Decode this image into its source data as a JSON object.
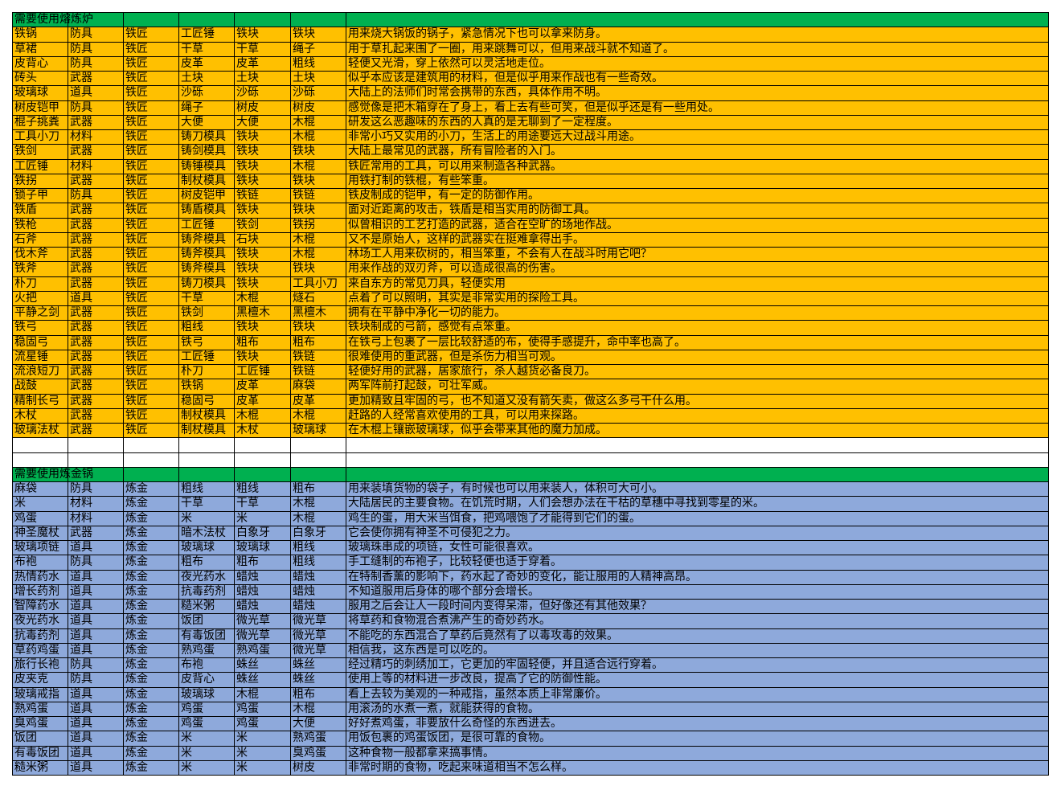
{
  "sections": [
    {
      "title": "需要使用熔炼炉",
      "rows": [
        [
          "铁锅",
          "防具",
          "铁匠",
          "工匠锤",
          "铁块",
          "铁块",
          "用来烧大锅饭的锅子，紧急情况下也可以拿来防身。"
        ],
        [
          "草裙",
          "防具",
          "铁匠",
          "干草",
          "干草",
          "绳子",
          "用于草扎起来围了一圈，用来跳舞可以，但用来战斗就不知道了。"
        ],
        [
          "皮背心",
          "防具",
          "铁匠",
          "皮革",
          "皮革",
          "粗线",
          "轻便又光滑，穿上依然可以灵活地走位。"
        ],
        [
          "砖头",
          "武器",
          "铁匠",
          "土块",
          "土块",
          "土块",
          "似乎本应该是建筑用的材料，但是似乎用来作战也有一些奇效。"
        ],
        [
          "玻璃球",
          "道具",
          "铁匠",
          "沙砾",
          "沙砾",
          "沙砾",
          "大陆上的法师们时常会携带的东西，具体作用不明。"
        ],
        [
          "树皮铠甲",
          "防具",
          "铁匠",
          "绳子",
          "树皮",
          "树皮",
          "感觉像是把木箱穿在了身上，看上去有些可笑，但是似乎还是有一些用处。"
        ],
        [
          "棍子挑粪",
          "武器",
          "铁匠",
          "大便",
          "大便",
          "木棍",
          "研发这么恶趣味的东西的人真的是无聊到了一定程度。"
        ],
        [
          "工具小刀",
          "材料",
          "铁匠",
          "铸刀模具",
          "铁块",
          "木棍",
          "非常小巧又实用的小刀，生活上的用途要远大过战斗用途。"
        ],
        [
          "铁剑",
          "武器",
          "铁匠",
          "铸剑模具",
          "铁块",
          "铁块",
          "大陆上最常见的武器，所有冒险者的入门。"
        ],
        [
          "工匠锤",
          "材料",
          "铁匠",
          "铸锤模具",
          "铁块",
          "木棍",
          "铁匠常用的工具，可以用来制造各种武器。"
        ],
        [
          "铁拐",
          "武器",
          "铁匠",
          "制杖模具",
          "铁块",
          "铁块",
          "用铁打制的铁棍，有些笨重。"
        ],
        [
          "锁子甲",
          "防具",
          "铁匠",
          "树皮铠甲",
          "铁链",
          "铁链",
          "铁皮制成的铠甲，有一定的防御作用。"
        ],
        [
          "铁盾",
          "武器",
          "铁匠",
          "铸盾模具",
          "铁块",
          "铁块",
          "面对近距离的攻击，铁盾是相当实用的防御工具。"
        ],
        [
          "铁枪",
          "武器",
          "铁匠",
          "工匠锤",
          "铁剑",
          "铁拐",
          "似曾相识的工艺打造的武器，适合在空旷的场地作战。"
        ],
        [
          "石斧",
          "武器",
          "铁匠",
          "铸斧模具",
          "石块",
          "木棍",
          "又不是原始人，这样的武器实在挺难拿得出手。"
        ],
        [
          "伐木斧",
          "武器",
          "铁匠",
          "铸斧模具",
          "铁块",
          "木棍",
          "林场工人用来砍树的，相当笨重，不会有人在战斗时用它吧？"
        ],
        [
          "铁斧",
          "武器",
          "铁匠",
          "铸斧模具",
          "铁块",
          "铁块",
          "用来作战的双刃斧，可以造成很高的伤害。"
        ],
        [
          "朴刀",
          "武器",
          "铁匠",
          "铸刀模具",
          "铁块",
          "工具小刀",
          "来自东方的常见刀具，轻便实用"
        ],
        [
          "火把",
          "道具",
          "铁匠",
          "干草",
          "木棍",
          "燧石",
          "点着了可以照明，其实是非常实用的探险工具。"
        ],
        [
          "平静之剑",
          "武器",
          "铁匠",
          "铁剑",
          "黑檀木",
          "黑檀木",
          "拥有在平静中净化一切的能力。"
        ],
        [
          "铁弓",
          "武器",
          "铁匠",
          "粗线",
          "铁块",
          "铁块",
          "铁块制成的弓箭，感觉有点笨重。"
        ],
        [
          "稳固弓",
          "武器",
          "铁匠",
          "铁弓",
          "粗布",
          "粗布",
          "在铁弓上包裹了一层比较舒适的布，使得手感提升，命中率也高了。"
        ],
        [
          "流星锤",
          "武器",
          "铁匠",
          "工匠锤",
          "铁块",
          "铁链",
          "很难使用的重武器，但是杀伤力相当可观。"
        ],
        [
          "流浪短刀",
          "武器",
          "铁匠",
          "朴刀",
          "工匠锤",
          "铁链",
          "轻便好用的武器，居家旅行，杀人越货必备良刀。"
        ],
        [
          "战鼓",
          "武器",
          "铁匠",
          "铁锅",
          "皮革",
          "麻袋",
          "两军阵前打起鼓，可壮军威。"
        ],
        [
          "精制长弓",
          "武器",
          "铁匠",
          "稳固弓",
          "皮革",
          "皮革",
          "更加精致且牢固的弓，也不知道又没有箭矢卖，做这么多弓干什么用。"
        ],
        [
          "木杖",
          "武器",
          "铁匠",
          "制杖模具",
          "木棍",
          "木棍",
          "赶路的人经常喜欢使用的工具，可以用来探路。"
        ],
        [
          "玻璃法杖",
          "武器",
          "铁匠",
          "制杖模具",
          "木杖",
          "玻璃球",
          "在木棍上镶嵌玻璃球，似乎会带来其他的魔力加成。"
        ]
      ]
    },
    {
      "title": "需要使用炼金锅",
      "rows": [
        [
          "麻袋",
          "防具",
          "炼金",
          "粗线",
          "粗线",
          "粗布",
          "用来装填货物的袋子，有时候也可以用来装人，体积可大可小。"
        ],
        [
          "米",
          "材料",
          "炼金",
          "干草",
          "干草",
          "木棍",
          "大陆居民的主要食物。在饥荒时期，人们会想办法在干枯的草穗中寻找到零星的米。"
        ],
        [
          "鸡蛋",
          "材料",
          "炼金",
          "米",
          "米",
          "木棍",
          "鸡生的蛋，用大米当饵食，把鸡喂饱了才能得到它们的蛋。"
        ],
        [
          "神圣魔杖",
          "武器",
          "炼金",
          "暗木法杖",
          "白象牙",
          "白象牙",
          "它会使你拥有神圣不可侵犯之力。"
        ],
        [
          "玻璃项链",
          "道具",
          "炼金",
          "玻璃球",
          "玻璃球",
          "粗线",
          "玻璃珠串成的项链，女性可能很喜欢。"
        ],
        [
          "布袍",
          "防具",
          "炼金",
          "粗布",
          "粗布",
          "粗线",
          "手工缝制的布袍子，比较轻便也适于穿着。"
        ],
        [
          "热情药水",
          "道具",
          "炼金",
          "夜光药水",
          "蜡烛",
          "蜡烛",
          "在特制香薰的影响下，药水起了奇妙的变化，能让服用的人精神高昂。"
        ],
        [
          "增长药剂",
          "道具",
          "炼金",
          "抗毒药剂",
          "蜡烛",
          "蜡烛",
          "不知道服用后身体的哪个部分会增长。"
        ],
        [
          "智障药水",
          "道具",
          "炼金",
          "糙米粥",
          "蜡烛",
          "蜡烛",
          "服用之后会让人一段时间内变得呆滞，但好像还有其他效果？"
        ],
        [
          "夜光药水",
          "道具",
          "炼金",
          "饭团",
          "微光草",
          "微光草",
          "将草药和食物混合煮沸产生的奇妙药水。"
        ],
        [
          "抗毒药剂",
          "道具",
          "炼金",
          "有毒饭团",
          "微光草",
          "微光草",
          "不能吃的东西混合了草药后竟然有了以毒攻毒的效果。"
        ],
        [
          "草药鸡蛋",
          "道具",
          "炼金",
          "熟鸡蛋",
          "熟鸡蛋",
          "微光草",
          "相信我，这东西是可以吃的。"
        ],
        [
          "旅行长袍",
          "防具",
          "炼金",
          "布袍",
          "蛛丝",
          "蛛丝",
          "经过精巧的刺绣加工，它更加的牢固轻便，并且适合远行穿着。"
        ],
        [
          "皮夹克",
          "防具",
          "炼金",
          "皮背心",
          "蛛丝",
          "蛛丝",
          "使用上等的材料进一步改良，提高了它的防御性能。"
        ],
        [
          "玻璃戒指",
          "道具",
          "炼金",
          "玻璃球",
          "木棍",
          "粗布",
          "看上去较为美观的一种戒指，虽然本质上非常廉价。"
        ],
        [
          "熟鸡蛋",
          "道具",
          "炼金",
          "鸡蛋",
          "鸡蛋",
          "木棍",
          "用滚汤的水煮一煮，就能获得的食物。"
        ],
        [
          "臭鸡蛋",
          "道具",
          "炼金",
          "鸡蛋",
          "鸡蛋",
          "大便",
          "好好煮鸡蛋，非要放什么奇怪的东西进去。"
        ],
        [
          "饭团",
          "道具",
          "炼金",
          "米",
          "米",
          "熟鸡蛋",
          "用饭包裹的鸡蛋饭团，是很可靠的食物。"
        ],
        [
          "有毒饭团",
          "道具",
          "炼金",
          "米",
          "米",
          "臭鸡蛋",
          "这种食物一般都拿来搞事情。"
        ],
        [
          "糙米粥",
          "道具",
          "炼金",
          "米",
          "米",
          "树皮",
          "非常时期的食物，吃起来味道相当不怎么样。"
        ]
      ]
    }
  ]
}
